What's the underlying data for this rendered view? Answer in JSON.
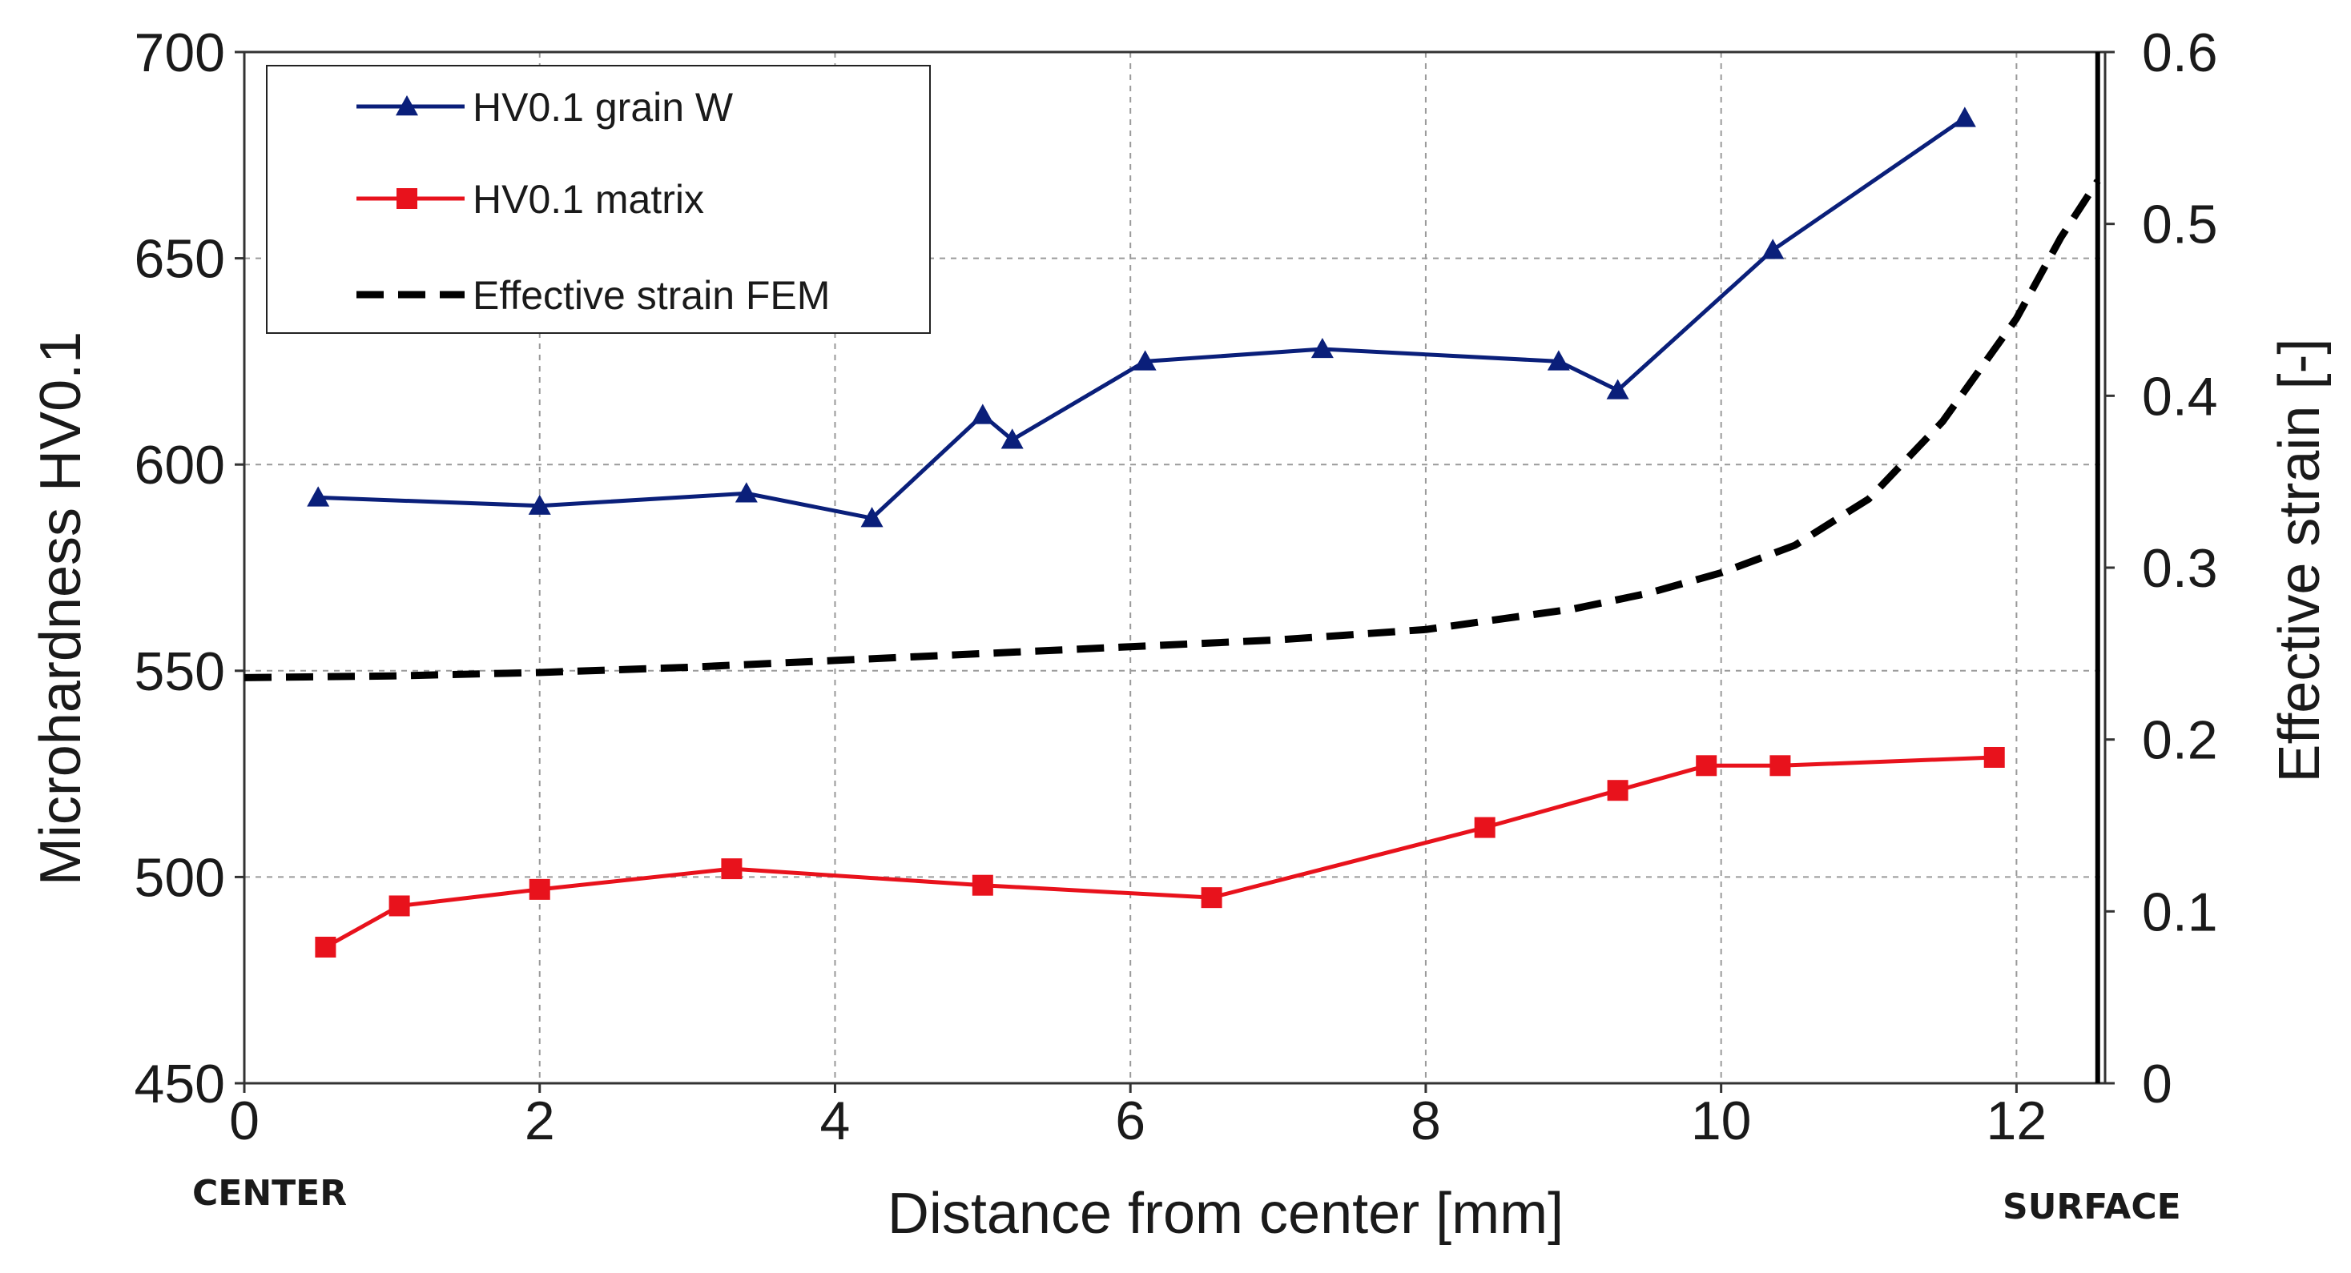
{
  "chart_data": {
    "type": "line",
    "title": "",
    "xlabel": "Distance from center [mm]",
    "ylabel": "Microhardness HV0.1",
    "y2label": "Effective strain [-]",
    "xlim": [
      0,
      12.6
    ],
    "ylim": [
      450,
      700
    ],
    "y2lim": [
      0,
      0.6
    ],
    "xticks": [
      0,
      2,
      4,
      6,
      8,
      10,
      12
    ],
    "xtick_labels": [
      "0",
      "2",
      "4",
      "6",
      "8",
      "10",
      "12"
    ],
    "yticks": [
      450,
      500,
      550,
      600,
      650,
      700
    ],
    "ytick_labels": [
      "450",
      "500",
      "550",
      "600",
      "650",
      "700"
    ],
    "y2ticks": [
      0,
      0.1,
      0.2,
      0.3,
      0.4,
      0.5,
      0.6
    ],
    "y2tick_labels": [
      "0",
      "0.1",
      "0.2",
      "0.3",
      "0.4",
      "0.5",
      "0.6"
    ],
    "grid": true,
    "legend_position": "top-left",
    "series": [
      {
        "name": "HV0.1 grain W",
        "axis": "left",
        "color": "#0a1f7a",
        "marker": "triangle",
        "x": [
          0.5,
          2.0,
          3.4,
          4.25,
          5.0,
          5.2,
          6.1,
          7.3,
          8.9,
          9.3,
          10.35,
          11.65
        ],
        "y": [
          592,
          590,
          593,
          587,
          612,
          606,
          625,
          628,
          625,
          618,
          652,
          684
        ]
      },
      {
        "name": "HV0.1 matrix",
        "axis": "left",
        "color": "#e8121c",
        "marker": "square",
        "x": [
          0.55,
          1.05,
          2.0,
          3.3,
          5.0,
          6.55,
          8.4,
          9.3,
          9.9,
          10.4,
          11.85
        ],
        "y": [
          483,
          493,
          497,
          502,
          498,
          495,
          512,
          521,
          527,
          527,
          529
        ]
      },
      {
        "name": "Effective strain FEM",
        "axis": "right",
        "color": "#000000",
        "style": "dashed",
        "x": [
          0,
          1,
          2,
          3,
          4,
          5,
          6,
          7,
          8,
          9,
          9.5,
          10,
          10.5,
          11,
          11.5,
          12,
          12.3,
          12.55
        ],
        "y": [
          0.236,
          0.237,
          0.239,
          0.242,
          0.246,
          0.25,
          0.254,
          0.258,
          0.264,
          0.276,
          0.285,
          0.297,
          0.313,
          0.34,
          0.385,
          0.445,
          0.492,
          0.525
        ]
      }
    ],
    "annotations": [
      {
        "text": "CENTER",
        "at_x": 0
      },
      {
        "text": "SURFACE",
        "at_x": 12.4
      }
    ],
    "surface_line_x": 12.55
  }
}
